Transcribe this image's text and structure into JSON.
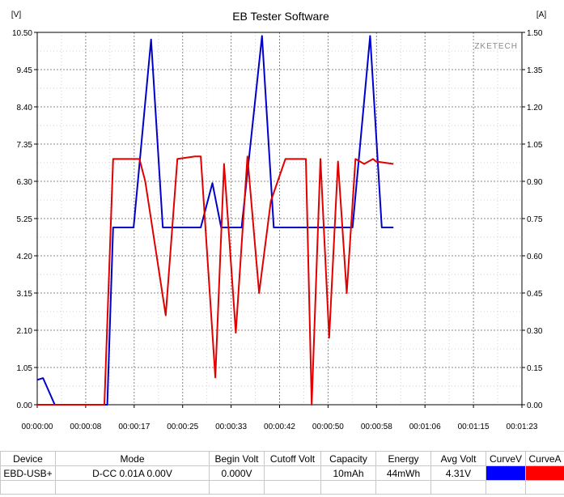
{
  "chart_data": {
    "type": "line",
    "title": "EB Tester Software",
    "watermark": "ZKETECH",
    "y_left_unit": "[V]",
    "y_right_unit": "[A]",
    "y_left_ticks": [
      "10.50",
      "9.45",
      "8.40",
      "7.35",
      "6.30",
      "5.25",
      "4.20",
      "3.15",
      "2.10",
      "1.05",
      "0.00"
    ],
    "y_right_ticks": [
      "1.50",
      "1.35",
      "1.20",
      "1.05",
      "0.90",
      "0.75",
      "0.60",
      "0.45",
      "0.30",
      "0.15",
      "0.00"
    ],
    "x_ticks": [
      "00:00:00",
      "00:00:08",
      "00:00:17",
      "00:00:25",
      "00:00:33",
      "00:00:42",
      "00:00:50",
      "00:00:58",
      "00:01:06",
      "00:01:15",
      "00:01:23"
    ],
    "ylim_left": [
      0,
      10.5
    ],
    "ylim_right": [
      0,
      1.5
    ],
    "xlim_seconds": [
      0,
      83
    ],
    "grid": true,
    "series": [
      {
        "name": "CurveV",
        "color": "#0000cc",
        "axis": "left",
        "x_seconds": [
          0,
          1,
          3,
          11,
          12,
          13,
          16.5,
          19.5,
          21.5,
          28,
          30,
          31.5,
          35,
          38.5,
          40.5,
          48.5,
          50.5,
          54,
          57,
          59,
          61
        ],
        "values": [
          0.7,
          0.75,
          0,
          0,
          0,
          5.0,
          5.0,
          10.3,
          5.0,
          5.0,
          6.25,
          5.0,
          5.0,
          10.4,
          5.0,
          5.0,
          5.0,
          5.0,
          10.4,
          5.0,
          5.0
        ]
      },
      {
        "name": "CurveA",
        "color": "#e00000",
        "axis": "right",
        "x_seconds": [
          0,
          11.5,
          13,
          17.5,
          18.5,
          22,
          24,
          27,
          28,
          30.5,
          32,
          34,
          36,
          38,
          40,
          42.5,
          46,
          47,
          48.5,
          50,
          51.5,
          53,
          54.5,
          56,
          57.5,
          58,
          61
        ],
        "values": [
          0,
          0,
          0.99,
          0.99,
          0.9,
          0.36,
          0.99,
          1.0,
          1.0,
          0.11,
          0.97,
          0.29,
          1.0,
          0.45,
          0.82,
          0.99,
          0.99,
          0.0,
          0.99,
          0.27,
          0.98,
          0.45,
          0.99,
          0.97,
          0.99,
          0.98,
          0.97
        ]
      }
    ]
  },
  "table": {
    "headers": [
      "Device",
      "Mode",
      "Begin Volt",
      "Cutoff Volt",
      "Capacity",
      "Energy",
      "Avg Volt",
      "CurveV",
      "CurveA"
    ],
    "row": {
      "device": "EBD-USB+",
      "mode": "D-CC  0.01A  0.00V",
      "begin_volt": "0.000V",
      "cutoff_volt": "",
      "capacity": "10mAh",
      "energy": "44mWh",
      "avg_volt": "4.31V",
      "curve_v_color": "#0000ff",
      "curve_a_color": "#ff0000"
    }
  }
}
